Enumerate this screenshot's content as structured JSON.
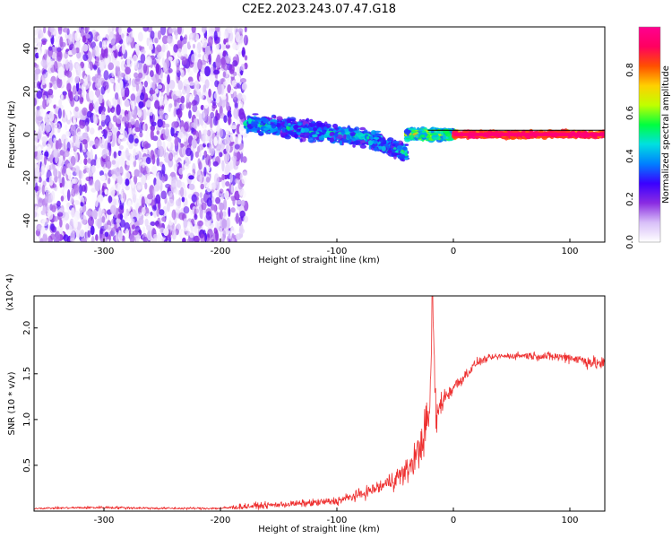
{
  "title": "C2E2.2023.243.07.47.G18",
  "chart_data": [
    {
      "type": "heatmap",
      "xlabel": "Height of straight line (km)",
      "ylabel": "Frequency (Hz)",
      "xlim": [
        -360,
        130
      ],
      "ylim": [
        -50,
        50
      ],
      "xticks": [
        -300,
        -200,
        -100,
        0,
        100
      ],
      "yticks": [
        -40,
        -20,
        0,
        20,
        40
      ],
      "colorbar": {
        "label": "Normalized spectral amplitude",
        "range": [
          0.0,
          1.0
        ],
        "ticks": [
          "0.0",
          "0.2",
          "0.4",
          "0.6",
          "0.8"
        ],
        "colormap": [
          "#ffffff",
          "#d8bff8",
          "#8a2be2",
          "#3a00ff",
          "#0080ff",
          "#00e0e0",
          "#00ff40",
          "#c0ff00",
          "#ffd000",
          "#ff5000",
          "#ff0060",
          "#ff0090"
        ]
      },
      "regions": [
        {
          "x_range": [
            -360,
            -178
          ],
          "freq_range": [
            -50,
            50
          ],
          "amplitude": [
            0.0,
            0.25
          ],
          "pattern": "scattered noise"
        },
        {
          "x_range": [
            -178,
            -40
          ],
          "freq_center": [
            [
              -178,
              5
            ],
            [
              -140,
              3
            ],
            [
              -100,
              0
            ],
            [
              -70,
              -2
            ],
            [
              -45,
              -8
            ]
          ],
          "freq_width": 9,
          "amplitude": [
            0.1,
            0.5
          ]
        },
        {
          "x_range": [
            -40,
            0
          ],
          "freq_center": [
            [
              -40,
              0
            ],
            [
              0,
              0
            ]
          ],
          "freq_width": 5,
          "amplitude": [
            0.2,
            0.7
          ]
        },
        {
          "x_range": [
            0,
            130
          ],
          "freq_center": [
            [
              0,
              0
            ],
            [
              130,
              0
            ]
          ],
          "freq_width": 3,
          "amplitude": [
            0.7,
            1.0
          ]
        }
      ]
    },
    {
      "type": "line",
      "xlabel": "Height of straight line (km)",
      "ylabel": "SNR (10 * v/v)",
      "y_multiplier": "(x10^4)",
      "xlim": [
        -360,
        130
      ],
      "ylim": [
        0,
        23500
      ],
      "xticks": [
        -300,
        -200,
        -100,
        0,
        100
      ],
      "yticks": [
        5000,
        10000,
        15000,
        20000
      ],
      "ytick_labels": [
        "0.5",
        "1.0",
        "1.5",
        "2.0"
      ],
      "color": "#ee3030",
      "x": [
        -360,
        -300,
        -250,
        -200,
        -180,
        -150,
        -120,
        -100,
        -80,
        -60,
        -50,
        -40,
        -30,
        -25,
        -20,
        -18,
        -15,
        -10,
        -5,
        0,
        10,
        20,
        30,
        40,
        60,
        80,
        100,
        110,
        120,
        130
      ],
      "values": [
        300,
        400,
        300,
        300,
        500,
        700,
        900,
        1100,
        1800,
        2800,
        3600,
        4300,
        6500,
        8500,
        11000,
        23500,
        10000,
        12000,
        12800,
        13500,
        14800,
        16200,
        16700,
        16900,
        17000,
        16900,
        16800,
        16500,
        16200,
        16000
      ],
      "noise": [
        150,
        250,
        200,
        200,
        500,
        500,
        600,
        700,
        900,
        1200,
        1800,
        2000,
        3000,
        3500,
        4000,
        1000,
        3500,
        2000,
        1500,
        1200,
        1000,
        700,
        500,
        500,
        600,
        700,
        900,
        1000,
        1100,
        1200
      ]
    }
  ]
}
